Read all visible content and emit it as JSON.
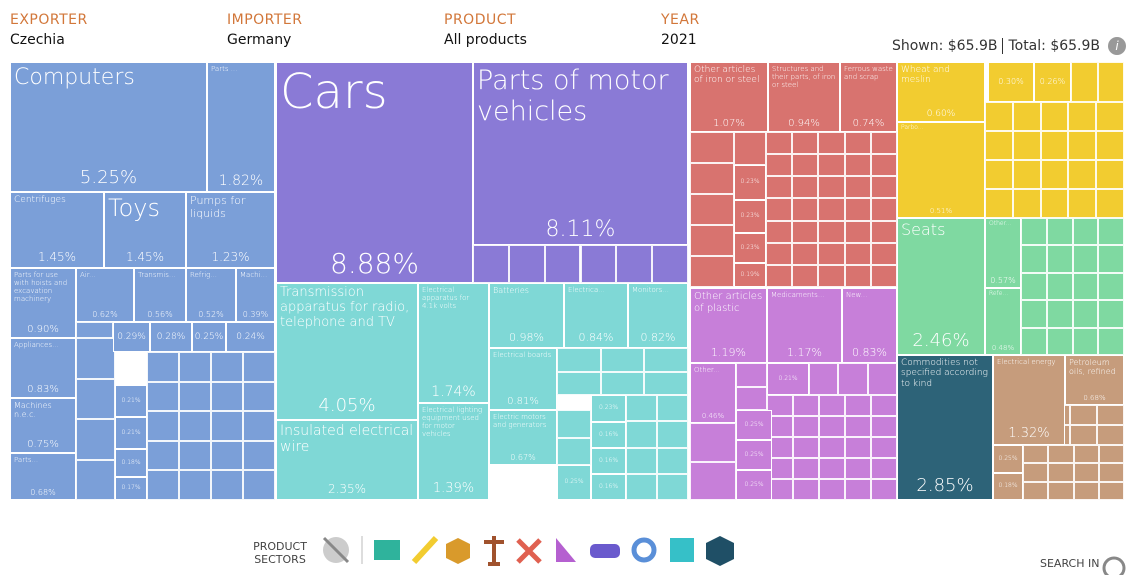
{
  "header": {
    "fields": [
      {
        "label": "EXPORTER",
        "value": "Czechia"
      },
      {
        "label": "IMPORTER",
        "value": "Germany"
      },
      {
        "label": "PRODUCT",
        "value": "All products"
      },
      {
        "label": "YEAR",
        "value": "2021"
      }
    ],
    "shown": "Shown: $65.9B",
    "total": "Total: $65.9B"
  },
  "chart_data": {
    "type": "treemap",
    "categories": [
      "Computers",
      "Parts ...",
      "Centrifuges",
      "Toys",
      "Pumps for liquids",
      "Parts for use with hoists and excavation machinery",
      "Air...",
      "Transmis...",
      "Refrig...",
      "Machi...",
      null,
      null,
      null,
      null,
      "Appliances...",
      "Machines n.e.c.",
      "Parts...",
      null,
      null,
      null,
      null,
      "Cars",
      "Parts of motor vehicles",
      "Transmission apparatus for radio, telephone and TV",
      "Insulated electrical wire",
      "Electrical apparatus for 4.1k volts",
      "Electrical lighting equipment used for motor vehicles",
      "Batteries",
      "Electrica...",
      "Monitors...",
      "Electrical boards",
      "Electric motors and generators",
      null,
      null,
      null,
      null,
      null,
      "Other articles of iron or steel",
      "Structures and their parts, of iron or steel",
      "Ferrous waste and scrap",
      null,
      null,
      null,
      null,
      "Other articles of plastic",
      "Medicaments...",
      "New...",
      "Other...",
      null,
      null,
      null,
      null,
      "Wheat and meslin",
      "Parbo...",
      null,
      null,
      "Seats",
      "Other...",
      "Refe...",
      "Commodities not specified according to kind",
      "Electrical energy",
      "Petroleum oils, refined",
      null,
      null
    ],
    "values": [
      5.25,
      1.82,
      1.45,
      1.45,
      1.23,
      0.9,
      0.62,
      0.56,
      0.52,
      0.39,
      0.29,
      0.28,
      0.25,
      0.24,
      0.83,
      0.75,
      0.68,
      0.21,
      0.21,
      0.18,
      0.17,
      8.88,
      8.11,
      4.05,
      2.35,
      1.74,
      1.39,
      0.98,
      0.84,
      0.82,
      0.81,
      0.67,
      0.23,
      0.25,
      0.16,
      0.16,
      0.16,
      1.07,
      0.94,
      0.74,
      0.23,
      0.23,
      0.23,
      0.19,
      1.19,
      1.17,
      0.83,
      0.46,
      0.21,
      0.25,
      0.25,
      0.25,
      0.6,
      0.51,
      0.3,
      0.26,
      2.46,
      0.57,
      0.48,
      2.85,
      1.32,
      0.68,
      0.25,
      0.18
    ],
    "value_labels": [
      "5.25%",
      "1.82%",
      "1.45%",
      "1.45%",
      "1.23%",
      "0.90%",
      "0.62%",
      "0.56%",
      "0.52%",
      "0.39%",
      "0.29%",
      "0.28%",
      "0.25%",
      "0.24%",
      "0.83%",
      "0.75%",
      "0.68%",
      "0.21%",
      "0.21%",
      "0.18%",
      "0.17%",
      "8.88%",
      "8.11%",
      "4.05%",
      "2.35%",
      "1.74%",
      "1.39%",
      "0.98%",
      "0.84%",
      "0.82%",
      "0.81%",
      "0.67%",
      "0.23%",
      "0.25%",
      "0.16%",
      "0.16%",
      "0.16%",
      "1.07%",
      "0.94%",
      "0.74%",
      "0.23%",
      "0.23%",
      "0.23%",
      "0.19%",
      "1.19%",
      "1.17%",
      "0.83%",
      "0.46%",
      "0.21%",
      "0.25%",
      "0.25%",
      "0.25%",
      "0.60%",
      "0.51%",
      "0.30%",
      "0.26%",
      "2.46%",
      "0.57%",
      "0.48%",
      "2.85%",
      "1.32%",
      "0.68%",
      "0.25%",
      "0.18%"
    ],
    "colors": [
      "#7b9fd8",
      "#7b9fd8",
      "#7b9fd8",
      "#7b9fd8",
      "#7b9fd8",
      "#7b9fd8",
      "#7b9fd8",
      "#7b9fd8",
      "#7b9fd8",
      "#7b9fd8",
      "#7b9fd8",
      "#7b9fd8",
      "#7b9fd8",
      "#7b9fd8",
      "#7b9fd8",
      "#7b9fd8",
      "#7b9fd8",
      "#7b9fd8",
      "#7b9fd8",
      "#7b9fd8",
      "#7b9fd8",
      "#8a7ad6",
      "#8a7ad6",
      "#7fd8d6",
      "#7fd8d6",
      "#7fd8d6",
      "#7fd8d6",
      "#7fd8d6",
      "#7fd8d6",
      "#7fd8d6",
      "#7fd8d6",
      "#7fd8d6",
      "#7fd8d6",
      "#7fd8d6",
      "#7fd8d6",
      "#7fd8d6",
      "#7fd8d6",
      "#d8736f",
      "#d8736f",
      "#d8736f",
      "#d8736f",
      "#d8736f",
      "#d8736f",
      "#d8736f",
      "#c77fd9",
      "#c77fd9",
      "#c77fd9",
      "#c77fd9",
      "#c77fd9",
      "#c77fd9",
      "#c77fd9",
      "#c77fd9",
      "#f2cc30",
      "#f2cc30",
      "#f2cc30",
      "#f2cc30",
      "#7fd9a1",
      "#7fd9a1",
      "#7fd9a1",
      "#2d6378",
      "#c69c7c",
      "#c69c7c",
      "#c69c7c",
      "#c69c7c"
    ]
  },
  "footer": {
    "sectors_label": "PRODUCT SECTORS",
    "search": "SEARCH IN"
  }
}
